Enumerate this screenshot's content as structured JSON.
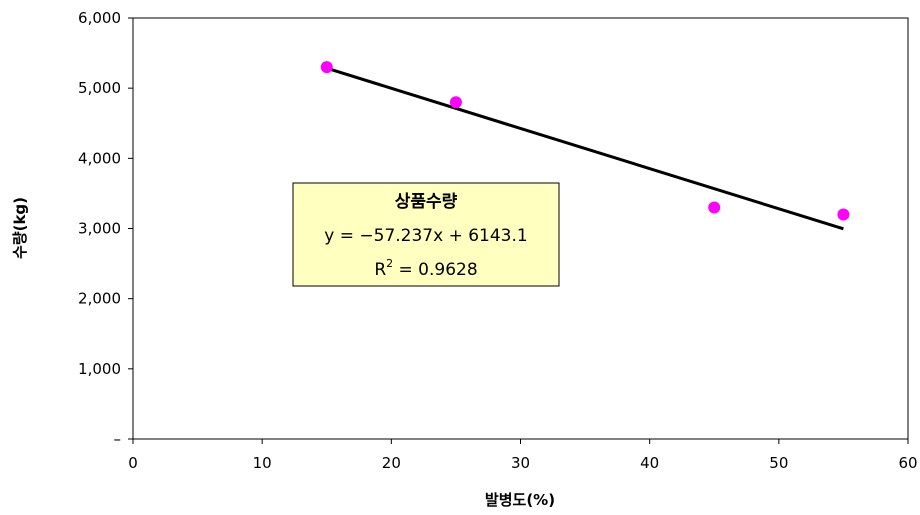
{
  "chart_data": {
    "type": "scatter",
    "xlabel": "발병도(%)",
    "ylabel": "수량(kg)",
    "xlim": [
      0,
      60
    ],
    "ylim": [
      0,
      6000
    ],
    "x_ticks": [
      "0",
      "10",
      "20",
      "30",
      "40",
      "50",
      "60"
    ],
    "y_ticks": [
      "–",
      "1,000",
      "2,000",
      "3,000",
      "4,000",
      "5,000",
      "6,000"
    ],
    "grid": false,
    "series": [
      {
        "name": "상품수량",
        "color": "#FF00FF",
        "x": [
          15,
          25,
          45,
          55
        ],
        "y": [
          5300,
          4800,
          3300,
          3200
        ]
      }
    ],
    "trendline": {
      "type": "linear",
      "slope": -57.237,
      "intercept": 6143.1,
      "x_range": [
        15,
        55
      ],
      "color": "#000000"
    },
    "annotation": {
      "title": "상품수량",
      "equation": "y = −57.237x + 6143.1",
      "r2_prefix": "R",
      "r2_sup": "2",
      "r2_value": " = 0.9628",
      "background": "#FFFFC0"
    }
  }
}
